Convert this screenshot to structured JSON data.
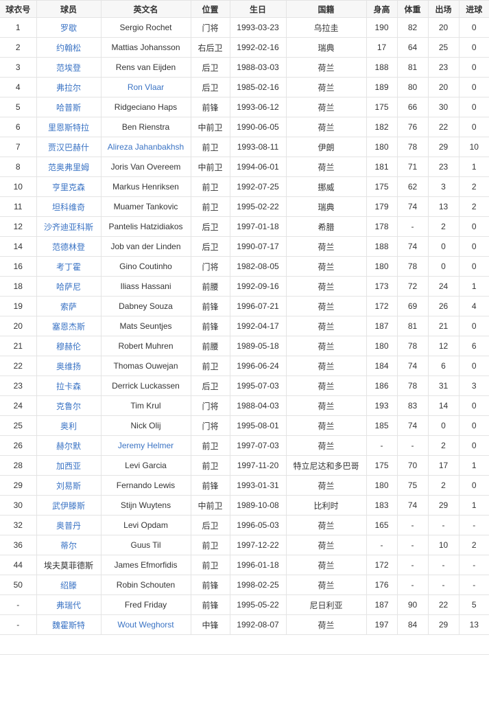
{
  "colors": {
    "link": "#3a73c4",
    "text": "#333333",
    "header_bg": "#f7f7f7",
    "border": "#e4e4e4"
  },
  "headers": [
    "球衣号",
    "球员",
    "英文名",
    "位置",
    "生日",
    "国籍",
    "身高",
    "体重",
    "出场",
    "进球"
  ],
  "rows": [
    {
      "cells": [
        "1",
        "罗歇",
        "Sergio Rochet",
        "门将",
        "1993-03-23",
        "乌拉圭",
        "190",
        "82",
        "20",
        "0"
      ],
      "cn_link": true,
      "en_link": false
    },
    {
      "cells": [
        "2",
        "约翰松",
        "Mattias Johansson",
        "右后卫",
        "1992-02-16",
        "瑞典",
        "17",
        "64",
        "25",
        "0"
      ],
      "cn_link": true,
      "en_link": false
    },
    {
      "cells": [
        "3",
        "范埃登",
        "Rens van Eijden",
        "后卫",
        "1988-03-03",
        "荷兰",
        "188",
        "81",
        "23",
        "0"
      ],
      "cn_link": true,
      "en_link": false
    },
    {
      "cells": [
        "4",
        "弗拉尔",
        "Ron Vlaar",
        "后卫",
        "1985-02-16",
        "荷兰",
        "189",
        "80",
        "20",
        "0"
      ],
      "cn_link": true,
      "en_link": true
    },
    {
      "cells": [
        "5",
        "哈普斯",
        "Ridgeciano Haps",
        "前锋",
        "1993-06-12",
        "荷兰",
        "175",
        "66",
        "30",
        "0"
      ],
      "cn_link": true,
      "en_link": false
    },
    {
      "cells": [
        "6",
        "里恩斯特拉",
        "Ben Rienstra",
        "中前卫",
        "1990-06-05",
        "荷兰",
        "182",
        "76",
        "22",
        "0"
      ],
      "cn_link": true,
      "en_link": false
    },
    {
      "cells": [
        "7",
        "贾汉巴赫什",
        "Alireza Jahanbakhsh",
        "前卫",
        "1993-08-11",
        "伊朗",
        "180",
        "78",
        "29",
        "10"
      ],
      "cn_link": true,
      "en_link": true
    },
    {
      "cells": [
        "8",
        "范奥弗里姆",
        "Joris Van Overeem",
        "中前卫",
        "1994-06-01",
        "荷兰",
        "181",
        "71",
        "23",
        "1"
      ],
      "cn_link": true,
      "en_link": false
    },
    {
      "cells": [
        "10",
        "亨里克森",
        "Markus Henriksen",
        "前卫",
        "1992-07-25",
        "挪威",
        "175",
        "62",
        "3",
        "2"
      ],
      "cn_link": true,
      "en_link": false
    },
    {
      "cells": [
        "11",
        "坦科维奇",
        "Muamer Tankovic",
        "前卫",
        "1995-02-22",
        "瑞典",
        "179",
        "74",
        "13",
        "2"
      ],
      "cn_link": true,
      "en_link": false
    },
    {
      "cells": [
        "12",
        "沙齐迪亚科斯",
        "Pantelis Hatzidiakos",
        "后卫",
        "1997-01-18",
        "希腊",
        "178",
        "-",
        "2",
        "0"
      ],
      "cn_link": true,
      "en_link": false
    },
    {
      "cells": [
        "14",
        "范德林登",
        "Job van der Linden",
        "后卫",
        "1990-07-17",
        "荷兰",
        "188",
        "74",
        "0",
        "0"
      ],
      "cn_link": true,
      "en_link": false
    },
    {
      "cells": [
        "16",
        "考丁霍",
        "Gino Coutinho",
        "门将",
        "1982-08-05",
        "荷兰",
        "180",
        "78",
        "0",
        "0"
      ],
      "cn_link": true,
      "en_link": false
    },
    {
      "cells": [
        "18",
        "哈萨尼",
        "Iliass Hassani",
        "前腰",
        "1992-09-16",
        "荷兰",
        "173",
        "72",
        "24",
        "1"
      ],
      "cn_link": true,
      "en_link": false
    },
    {
      "cells": [
        "19",
        "索萨",
        "Dabney Souza",
        "前锋",
        "1996-07-21",
        "荷兰",
        "172",
        "69",
        "26",
        "4"
      ],
      "cn_link": true,
      "en_link": false
    },
    {
      "cells": [
        "20",
        "塞恩杰斯",
        "Mats Seuntjes",
        "前锋",
        "1992-04-17",
        "荷兰",
        "187",
        "81",
        "21",
        "0"
      ],
      "cn_link": true,
      "en_link": false
    },
    {
      "cells": [
        "21",
        "穆赫伦",
        "Robert Muhren",
        "前腰",
        "1989-05-18",
        "荷兰",
        "180",
        "78",
        "12",
        "6"
      ],
      "cn_link": true,
      "en_link": false
    },
    {
      "cells": [
        "22",
        "奥维扬",
        "Thomas Ouwejan",
        "前卫",
        "1996-06-24",
        "荷兰",
        "184",
        "74",
        "6",
        "0"
      ],
      "cn_link": true,
      "en_link": false
    },
    {
      "cells": [
        "23",
        "拉卡森",
        "Derrick Luckassen",
        "后卫",
        "1995-07-03",
        "荷兰",
        "186",
        "78",
        "31",
        "3"
      ],
      "cn_link": true,
      "en_link": false
    },
    {
      "cells": [
        "24",
        "克鲁尔",
        "Tim Krul",
        "门将",
        "1988-04-03",
        "荷兰",
        "193",
        "83",
        "14",
        "0"
      ],
      "cn_link": true,
      "en_link": false
    },
    {
      "cells": [
        "25",
        "奥利",
        "Nick Olij",
        "门将",
        "1995-08-01",
        "荷兰",
        "185",
        "74",
        "0",
        "0"
      ],
      "cn_link": true,
      "en_link": false
    },
    {
      "cells": [
        "26",
        "赫尔默",
        "Jeremy Helmer",
        "前卫",
        "1997-07-03",
        "荷兰",
        "-",
        "-",
        "2",
        "0"
      ],
      "cn_link": true,
      "en_link": true
    },
    {
      "cells": [
        "28",
        "加西亚",
        "Levi Garcia",
        "前卫",
        "1997-11-20",
        "特立尼达和多巴哥",
        "175",
        "70",
        "17",
        "1"
      ],
      "cn_link": true,
      "en_link": false
    },
    {
      "cells": [
        "29",
        "刘易斯",
        "Fernando Lewis",
        "前锋",
        "1993-01-31",
        "荷兰",
        "180",
        "75",
        "2",
        "0"
      ],
      "cn_link": true,
      "en_link": false
    },
    {
      "cells": [
        "30",
        "武伊滕斯",
        "Stijn Wuytens",
        "中前卫",
        "1989-10-08",
        "比利时",
        "183",
        "74",
        "29",
        "1"
      ],
      "cn_link": true,
      "en_link": false
    },
    {
      "cells": [
        "32",
        "奥普丹",
        "Levi Opdam",
        "后卫",
        "1996-05-03",
        "荷兰",
        "165",
        "-",
        "-",
        "-"
      ],
      "cn_link": true,
      "en_link": false
    },
    {
      "cells": [
        "36",
        "蒂尔",
        "Guus Til",
        "前卫",
        "1997-12-22",
        "荷兰",
        "-",
        "-",
        "10",
        "2"
      ],
      "cn_link": true,
      "en_link": false
    },
    {
      "cells": [
        "44",
        "埃夫莫菲德斯",
        "James Efmorfidis",
        "前卫",
        "1996-01-18",
        "荷兰",
        "172",
        "-",
        "-",
        "-"
      ],
      "cn_link": false,
      "en_link": false
    },
    {
      "cells": [
        "50",
        "绍滕",
        "Robin Schouten",
        "前锋",
        "1998-02-25",
        "荷兰",
        "176",
        "-",
        "-",
        "-"
      ],
      "cn_link": true,
      "en_link": false
    },
    {
      "cells": [
        "-",
        "弗瑞代",
        "Fred Friday",
        "前锋",
        "1995-05-22",
        "尼日利亚",
        "187",
        "90",
        "22",
        "5"
      ],
      "cn_link": true,
      "en_link": false
    },
    {
      "cells": [
        "-",
        "魏霍斯特",
        "Wout Weghorst",
        "中锋",
        "1992-08-07",
        "荷兰",
        "197",
        "84",
        "29",
        "13"
      ],
      "cn_link": true,
      "en_link": true
    }
  ]
}
